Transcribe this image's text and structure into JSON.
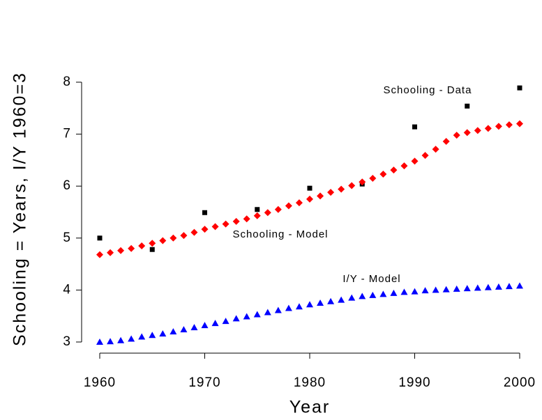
{
  "chart_data": {
    "type": "scatter",
    "xlabel": "Year",
    "ylabel": "Schooling = Years, I/Y 1960=3",
    "xlim": [
      1960,
      2000
    ],
    "ylim": [
      3,
      8
    ],
    "xticks": [
      1960,
      1970,
      1980,
      1990,
      2000
    ],
    "yticks": [
      3,
      4,
      5,
      6,
      7,
      8
    ],
    "grid": false,
    "series": [
      {
        "name": "Schooling - Data",
        "color": "#000000",
        "marker": "square",
        "x": [
          1960,
          1965,
          1970,
          1975,
          1980,
          1985,
          1990,
          1995,
          2000
        ],
        "values": [
          5.0,
          4.78,
          5.49,
          5.55,
          5.96,
          6.04,
          7.14,
          7.54,
          7.89
        ]
      },
      {
        "name": "Schooling - Model",
        "color": "#ff0000",
        "marker": "diamond",
        "x": [
          1960,
          1961,
          1962,
          1963,
          1964,
          1965,
          1966,
          1967,
          1968,
          1969,
          1970,
          1971,
          1972,
          1973,
          1974,
          1975,
          1976,
          1977,
          1978,
          1979,
          1980,
          1981,
          1982,
          1983,
          1984,
          1985,
          1986,
          1987,
          1988,
          1989,
          1990,
          1991,
          1992,
          1993,
          1994,
          1995,
          1996,
          1997,
          1998,
          1999,
          2000
        ],
        "values": [
          4.68,
          4.72,
          4.76,
          4.8,
          4.85,
          4.9,
          4.95,
          5.0,
          5.05,
          5.11,
          5.17,
          5.22,
          5.27,
          5.32,
          5.37,
          5.43,
          5.49,
          5.55,
          5.62,
          5.68,
          5.75,
          5.81,
          5.88,
          5.94,
          6.01,
          6.08,
          6.15,
          6.23,
          6.31,
          6.39,
          6.48,
          6.59,
          6.71,
          6.86,
          6.98,
          7.03,
          7.07,
          7.11,
          7.15,
          7.18,
          7.2
        ]
      },
      {
        "name": "I/Y - Model",
        "color": "#0000ff",
        "marker": "triangle",
        "x": [
          1960,
          1961,
          1962,
          1963,
          1964,
          1965,
          1966,
          1967,
          1968,
          1969,
          1970,
          1971,
          1972,
          1973,
          1974,
          1975,
          1976,
          1977,
          1978,
          1979,
          1980,
          1981,
          1982,
          1983,
          1984,
          1985,
          1986,
          1987,
          1988,
          1989,
          1990,
          1991,
          1992,
          1993,
          1994,
          1995,
          1996,
          1997,
          1998,
          1999,
          2000
        ],
        "values": [
          3.0,
          3.01,
          3.03,
          3.06,
          3.1,
          3.13,
          3.16,
          3.2,
          3.24,
          3.28,
          3.32,
          3.36,
          3.4,
          3.45,
          3.49,
          3.53,
          3.57,
          3.61,
          3.65,
          3.68,
          3.72,
          3.75,
          3.78,
          3.81,
          3.85,
          3.88,
          3.9,
          3.92,
          3.94,
          3.96,
          3.97,
          3.99,
          4.0,
          4.01,
          4.02,
          4.03,
          4.04,
          4.05,
          4.06,
          4.07,
          4.08
        ]
      }
    ]
  }
}
